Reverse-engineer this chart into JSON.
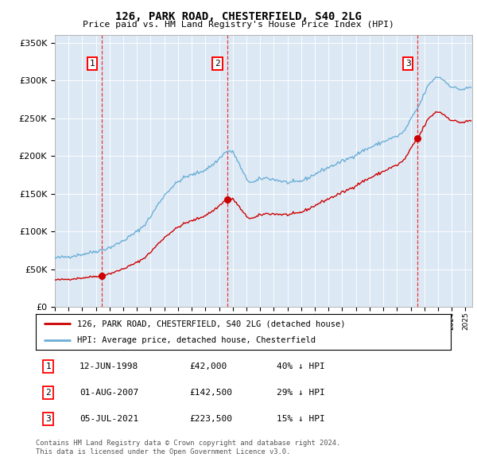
{
  "title": "126, PARK ROAD, CHESTERFIELD, S40 2LG",
  "subtitle": "Price paid vs. HM Land Registry's House Price Index (HPI)",
  "hpi_label": "HPI: Average price, detached house, Chesterfield",
  "property_label": "126, PARK ROAD, CHESTERFIELD, S40 2LG (detached house)",
  "sale_points": [
    {
      "num": 1,
      "date_x": 1998.45,
      "price": 42000,
      "label": "12-JUN-1998",
      "amount": "£42,000",
      "pct": "40% ↓ HPI"
    },
    {
      "num": 2,
      "date_x": 2007.58,
      "price": 142500,
      "label": "01-AUG-2007",
      "amount": "£142,500",
      "pct": "29% ↓ HPI"
    },
    {
      "num": 3,
      "date_x": 2021.5,
      "price": 223500,
      "label": "05-JUL-2021",
      "amount": "£223,500",
      "pct": "15% ↓ HPI"
    }
  ],
  "hpi_color": "#6baed6",
  "property_color": "#cc0000",
  "sale_dot_color": "#cc0000",
  "vline_color": "#ee3333",
  "background_color": "#dce9f5",
  "ylim": [
    0,
    360000
  ],
  "xlim_start": 1995.0,
  "xlim_end": 2025.5,
  "hpi_anchors": [
    [
      1995.0,
      65000
    ],
    [
      1995.5,
      66000
    ],
    [
      1996.0,
      67000
    ],
    [
      1996.5,
      68500
    ],
    [
      1997.0,
      70000
    ],
    [
      1997.5,
      72000
    ],
    [
      1998.0,
      74000
    ],
    [
      1998.5,
      76000
    ],
    [
      1999.0,
      79000
    ],
    [
      1999.5,
      83000
    ],
    [
      2000.0,
      88000
    ],
    [
      2000.5,
      94000
    ],
    [
      2001.0,
      100000
    ],
    [
      2001.5,
      108000
    ],
    [
      2002.0,
      120000
    ],
    [
      2002.5,
      135000
    ],
    [
      2003.0,
      148000
    ],
    [
      2003.5,
      158000
    ],
    [
      2004.0,
      166000
    ],
    [
      2004.5,
      172000
    ],
    [
      2005.0,
      175000
    ],
    [
      2005.5,
      178000
    ],
    [
      2006.0,
      182000
    ],
    [
      2006.5,
      188000
    ],
    [
      2007.0,
      196000
    ],
    [
      2007.25,
      202000
    ],
    [
      2007.5,
      205000
    ],
    [
      2007.75,
      207000
    ],
    [
      2008.0,
      205000
    ],
    [
      2008.25,
      198000
    ],
    [
      2008.5,
      188000
    ],
    [
      2008.75,
      178000
    ],
    [
      2009.0,
      170000
    ],
    [
      2009.25,
      166000
    ],
    [
      2009.5,
      165000
    ],
    [
      2009.75,
      167000
    ],
    [
      2010.0,
      170000
    ],
    [
      2010.5,
      171000
    ],
    [
      2011.0,
      169000
    ],
    [
      2011.5,
      167000
    ],
    [
      2012.0,
      165000
    ],
    [
      2012.5,
      165000
    ],
    [
      2013.0,
      167000
    ],
    [
      2013.5,
      171000
    ],
    [
      2014.0,
      176000
    ],
    [
      2014.5,
      181000
    ],
    [
      2015.0,
      185000
    ],
    [
      2015.5,
      189000
    ],
    [
      2016.0,
      193000
    ],
    [
      2016.5,
      197000
    ],
    [
      2017.0,
      202000
    ],
    [
      2017.5,
      207000
    ],
    [
      2018.0,
      211000
    ],
    [
      2018.5,
      215000
    ],
    [
      2019.0,
      219000
    ],
    [
      2019.5,
      223000
    ],
    [
      2020.0,
      226000
    ],
    [
      2020.5,
      232000
    ],
    [
      2021.0,
      248000
    ],
    [
      2021.25,
      256000
    ],
    [
      2021.5,
      263000
    ],
    [
      2021.75,
      272000
    ],
    [
      2022.0,
      283000
    ],
    [
      2022.25,
      292000
    ],
    [
      2022.5,
      298000
    ],
    [
      2022.75,
      303000
    ],
    [
      2023.0,
      305000
    ],
    [
      2023.25,
      303000
    ],
    [
      2023.5,
      299000
    ],
    [
      2023.75,
      295000
    ],
    [
      2024.0,
      292000
    ],
    [
      2024.25,
      290000
    ],
    [
      2024.5,
      289000
    ],
    [
      2024.75,
      288000
    ],
    [
      2025.0,
      289000
    ],
    [
      2025.4,
      291000
    ]
  ],
  "footer": "Contains HM Land Registry data © Crown copyright and database right 2024.\nThis data is licensed under the Open Government Licence v3.0."
}
